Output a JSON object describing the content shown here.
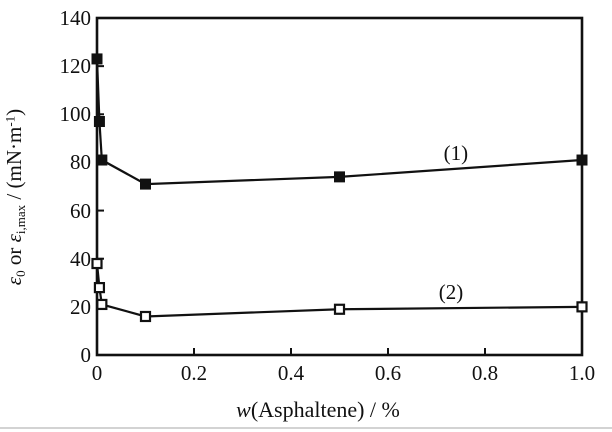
{
  "figure": {
    "background": "#ffffff",
    "ink_color": "#111111",
    "artifact_line_color": "#c4c4c4"
  },
  "chart_data": {
    "type": "line",
    "title": "",
    "xlabel_parts": [
      {
        "t": "w",
        "i": true
      },
      {
        "t": "(Asphaltene) / %"
      }
    ],
    "ylabel_parts": [
      {
        "t": "ε",
        "i": true
      },
      {
        "t": "0",
        "sub": true
      },
      {
        "t": " or "
      },
      {
        "t": "ε",
        "i": true
      },
      {
        "t": "i,max",
        "sub": true
      },
      {
        "t": " / (mN·m"
      },
      {
        "t": "-1",
        "sup": true
      },
      {
        "t": ")"
      }
    ],
    "xlim": [
      0,
      1.0
    ],
    "ylim": [
      0,
      140
    ],
    "xticks": [
      0,
      0.2,
      0.4,
      0.6,
      0.8,
      1.0
    ],
    "xtick_labels": [
      "0",
      "0.2",
      "0.4",
      "0.6",
      "0.8",
      "1.0"
    ],
    "yticks": [
      0,
      20,
      40,
      60,
      80,
      100,
      120,
      140
    ],
    "ytick_labels": [
      "0",
      "20",
      "40",
      "60",
      "80",
      "100",
      "120",
      "140"
    ],
    "grid": false,
    "frame": "box",
    "legend": "none",
    "series": [
      {
        "name": "(1)",
        "marker": "filled-square",
        "x": [
          0,
          0.005,
          0.01,
          0.1,
          0.5,
          1.0
        ],
        "y": [
          123,
          97,
          81,
          71,
          74,
          81
        ]
      },
      {
        "name": "(2)",
        "marker": "open-square",
        "x": [
          0,
          0.005,
          0.01,
          0.1,
          0.5,
          1.0
        ],
        "y": [
          38,
          28,
          21,
          16,
          19,
          20
        ]
      }
    ],
    "annotations": [
      {
        "text": "(1)",
        "x": 0.74,
        "y": 84
      },
      {
        "text": "(2)",
        "x": 0.73,
        "y": 26
      }
    ]
  }
}
